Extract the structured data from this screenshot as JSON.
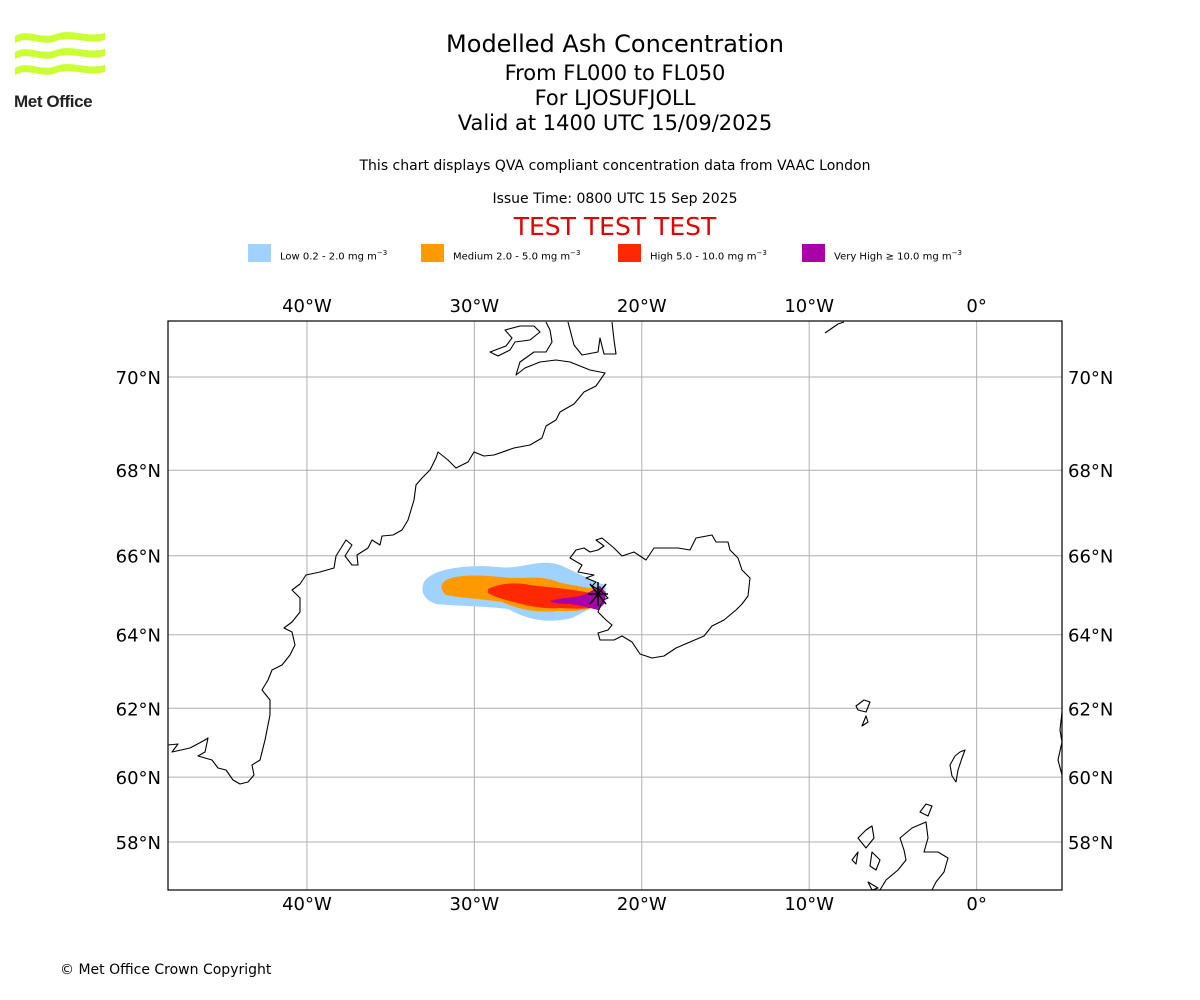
{
  "logo": {
    "text": "Met Office",
    "color": "#ccff33"
  },
  "header": {
    "title": "Modelled Ash Concentration",
    "levels": "From FL000 to FL050",
    "volcano": "For LJOSUFJOLL",
    "valid": "Valid at 1400 UTC 15/09/2025",
    "disclaimer": "This chart displays QVA compliant concentration data from VAAC London",
    "issue": "Issue Time: 0800 UTC 15 Sep 2025",
    "test_banner": "TEST TEST TEST"
  },
  "legend": [
    {
      "label": "Low 0.2 - 2.0 mg m",
      "unit_exp": "−3",
      "color": "#a0d2ff"
    },
    {
      "label": "Medium 2.0 - 5.0 mg m",
      "unit_exp": "−3",
      "color": "#ff9900"
    },
    {
      "label": "High 5.0 - 10.0 mg m",
      "unit_exp": "−3",
      "color": "#ff2800"
    },
    {
      "label": "Very High ≥ 10.0 mg m",
      "unit_exp": "−3",
      "color": "#aa00aa"
    }
  ],
  "map": {
    "extent": {
      "lon": [
        -48.3,
        5.1
      ],
      "lat": [
        56.8,
        71.2
      ]
    },
    "lon_ticks": [
      {
        "value": -40,
        "label": "40°W"
      },
      {
        "value": -30,
        "label": "30°W"
      },
      {
        "value": -20,
        "label": "20°W"
      },
      {
        "value": -10,
        "label": "10°W"
      },
      {
        "value": 0,
        "label": "0°"
      }
    ],
    "lat_ticks": [
      {
        "value": 70,
        "label": "70°N"
      },
      {
        "value": 68,
        "label": "68°N"
      },
      {
        "value": 66,
        "label": "66°N"
      },
      {
        "value": 64,
        "label": "64°N"
      },
      {
        "value": 62,
        "label": "62°N"
      },
      {
        "value": 60,
        "label": "60°N"
      },
      {
        "value": 58,
        "label": "58°N"
      }
    ],
    "grid": true,
    "volcano_location": {
      "lon": -22.6,
      "lat": 64.9
    }
  },
  "footer": {
    "copyright": "© Met Office Crown Copyright"
  }
}
